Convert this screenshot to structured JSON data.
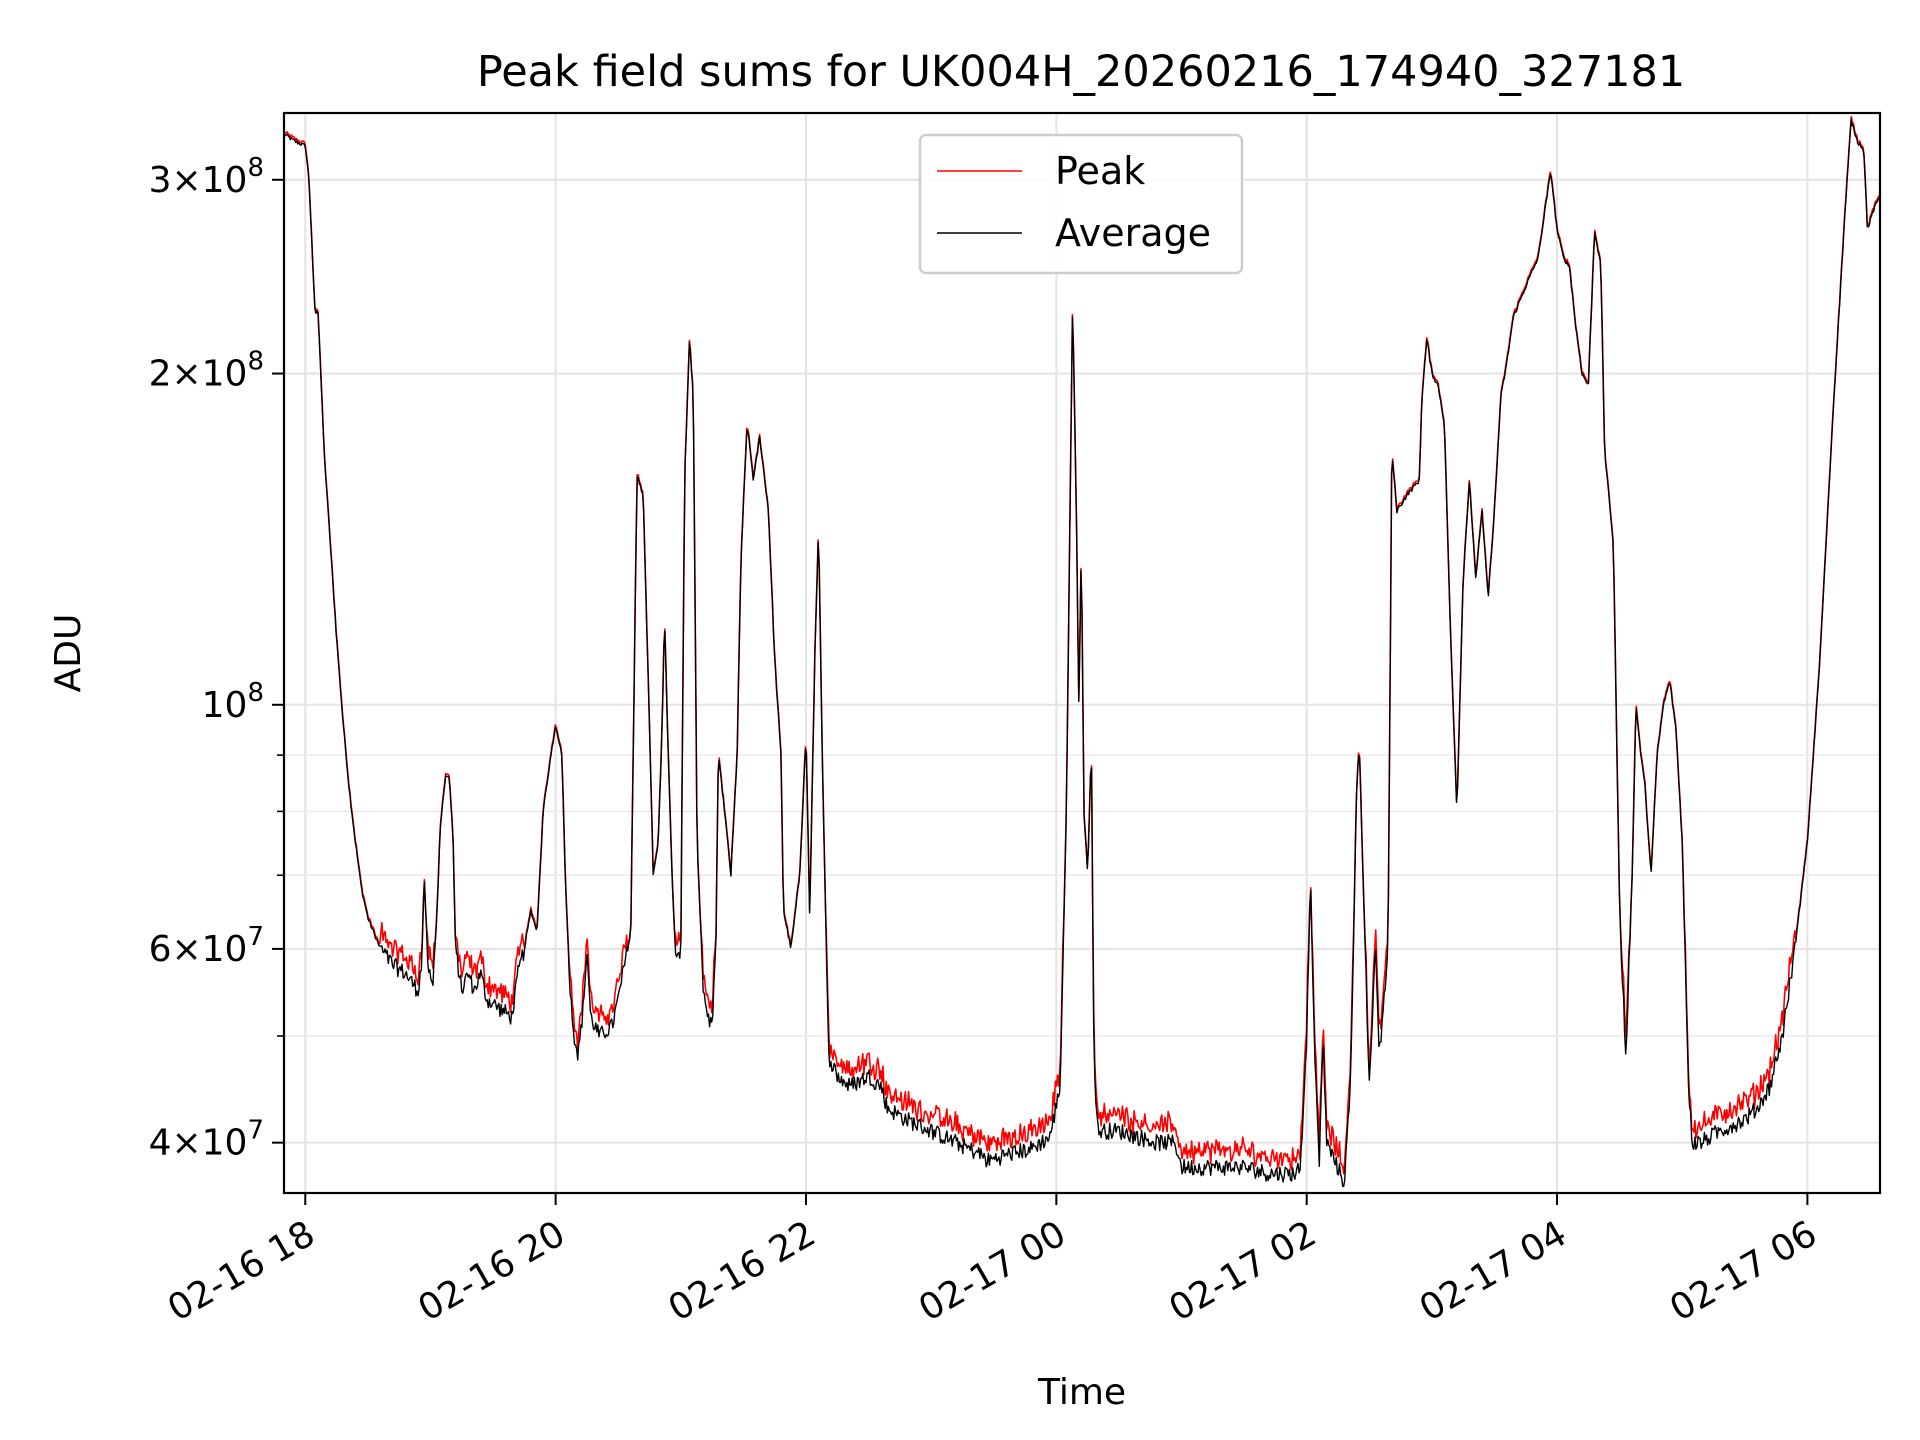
{
  "chart_data": {
    "type": "line",
    "title": "Peak field sums for UK004H_20260216_174940_327181",
    "xlabel": "Time",
    "ylabel": "ADU",
    "yscale": "log",
    "ylim": [
      36000000,
      345000000
    ],
    "xlim_hours": [
      17.83,
      30.58
    ],
    "x_unit": "hours since 2026-02-16 00:00",
    "grid": true,
    "legend_position": "top-center",
    "x_ticks": [
      {
        "value": 18,
        "label": "02-16 18"
      },
      {
        "value": 20,
        "label": "02-16 20"
      },
      {
        "value": 22,
        "label": "02-16 22"
      },
      {
        "value": 24,
        "label": "02-17 00"
      },
      {
        "value": 26,
        "label": "02-17 02"
      },
      {
        "value": 28,
        "label": "02-17 04"
      },
      {
        "value": 30,
        "label": "02-17 06"
      }
    ],
    "y_ticks": [
      {
        "value": 40000000,
        "mant": "4",
        "exp": "7"
      },
      {
        "value": 60000000,
        "mant": "6",
        "exp": "7"
      },
      {
        "value": 100000000,
        "mant": "",
        "exp": "8"
      },
      {
        "value": 200000000,
        "mant": "2",
        "exp": "8"
      },
      {
        "value": 300000000,
        "mant": "3",
        "exp": "8"
      }
    ],
    "y_minor_ticks": [
      50000000,
      70000000,
      80000000,
      90000000
    ],
    "series": [
      {
        "name": "Peak",
        "color": "#ff0000"
      },
      {
        "name": "Average",
        "color": "#000000"
      }
    ],
    "average_points": [
      [
        17.83,
        330
      ],
      [
        17.92,
        325
      ],
      [
        18.0,
        322
      ],
      [
        18.03,
        300
      ],
      [
        18.06,
        250
      ],
      [
        18.08,
        225
      ],
      [
        18.1,
        230
      ],
      [
        18.12,
        205
      ],
      [
        18.15,
        170
      ],
      [
        18.2,
        140
      ],
      [
        18.25,
        115
      ],
      [
        18.3,
        97
      ],
      [
        18.35,
        84
      ],
      [
        18.4,
        75
      ],
      [
        18.45,
        68
      ],
      [
        18.5,
        64
      ],
      [
        18.6,
        60
      ],
      [
        18.7,
        58
      ],
      [
        18.8,
        57
      ],
      [
        18.9,
        55
      ],
      [
        18.93,
        58
      ],
      [
        18.95,
        70
      ],
      [
        18.98,
        58
      ],
      [
        19.02,
        56
      ],
      [
        19.05,
        64
      ],
      [
        19.08,
        78
      ],
      [
        19.12,
        86
      ],
      [
        19.15,
        86
      ],
      [
        19.18,
        76
      ],
      [
        19.2,
        60
      ],
      [
        19.25,
        55
      ],
      [
        19.3,
        57
      ],
      [
        19.35,
        55
      ],
      [
        19.4,
        57
      ],
      [
        19.45,
        54
      ],
      [
        19.55,
        53
      ],
      [
        19.65,
        52
      ],
      [
        19.7,
        57
      ],
      [
        19.75,
        60
      ],
      [
        19.8,
        65
      ],
      [
        19.85,
        62
      ],
      [
        19.9,
        80
      ],
      [
        19.95,
        88
      ],
      [
        20.0,
        96
      ],
      [
        20.05,
        90
      ],
      [
        20.08,
        68
      ],
      [
        20.12,
        54
      ],
      [
        20.15,
        50
      ],
      [
        20.18,
        48
      ],
      [
        20.22,
        53
      ],
      [
        20.25,
        60
      ],
      [
        20.28,
        52
      ],
      [
        20.35,
        50
      ],
      [
        20.45,
        51
      ],
      [
        20.5,
        54
      ],
      [
        20.55,
        58
      ],
      [
        20.6,
        62
      ],
      [
        20.63,
        110
      ],
      [
        20.65,
        162
      ],
      [
        20.7,
        155
      ],
      [
        20.75,
        95
      ],
      [
        20.78,
        70
      ],
      [
        20.82,
        75
      ],
      [
        20.85,
        95
      ],
      [
        20.87,
        120
      ],
      [
        20.9,
        90
      ],
      [
        20.93,
        70
      ],
      [
        20.96,
        58
      ],
      [
        21.0,
        60
      ],
      [
        21.03,
        160
      ],
      [
        21.07,
        215
      ],
      [
        21.1,
        190
      ],
      [
        21.13,
        75
      ],
      [
        21.18,
        55
      ],
      [
        21.22,
        52
      ],
      [
        21.25,
        51
      ],
      [
        21.28,
        60
      ],
      [
        21.3,
        90
      ],
      [
        21.35,
        80
      ],
      [
        21.4,
        70
      ],
      [
        21.45,
        90
      ],
      [
        21.48,
        135
      ],
      [
        21.53,
        180
      ],
      [
        21.58,
        160
      ],
      [
        21.63,
        175
      ],
      [
        21.7,
        150
      ],
      [
        21.75,
        110
      ],
      [
        21.8,
        90
      ],
      [
        21.82,
        65
      ],
      [
        21.88,
        60
      ],
      [
        21.95,
        70
      ],
      [
        22.0,
        94
      ],
      [
        22.03,
        64
      ],
      [
        22.07,
        110
      ],
      [
        22.1,
        145
      ],
      [
        22.13,
        90
      ],
      [
        22.18,
        48
      ],
      [
        22.25,
        46
      ],
      [
        22.35,
        45
      ],
      [
        22.5,
        46
      ],
      [
        22.6,
        45
      ],
      [
        22.65,
        43
      ],
      [
        22.8,
        42
      ],
      [
        22.9,
        41.5
      ],
      [
        23.0,
        41
      ],
      [
        23.2,
        40
      ],
      [
        23.4,
        39
      ],
      [
        23.45,
        38.5
      ],
      [
        23.6,
        39
      ],
      [
        23.8,
        39.5
      ],
      [
        23.95,
        40.5
      ],
      [
        24.03,
        45
      ],
      [
        24.08,
        80
      ],
      [
        24.13,
        232
      ],
      [
        24.16,
        150
      ],
      [
        24.18,
        100
      ],
      [
        24.2,
        140
      ],
      [
        24.22,
        80
      ],
      [
        24.25,
        70
      ],
      [
        24.28,
        92
      ],
      [
        24.3,
        48
      ],
      [
        24.33,
        41
      ],
      [
        24.5,
        41
      ],
      [
        24.8,
        40
      ],
      [
        24.95,
        40
      ],
      [
        25.0,
        38
      ],
      [
        25.2,
        38
      ],
      [
        25.5,
        38
      ],
      [
        25.7,
        37.5
      ],
      [
        25.9,
        37.5
      ],
      [
        25.95,
        38
      ],
      [
        26.0,
        50
      ],
      [
        26.03,
        70
      ],
      [
        26.06,
        50
      ],
      [
        26.1,
        38
      ],
      [
        26.13,
        50
      ],
      [
        26.16,
        40
      ],
      [
        26.3,
        36.8
      ],
      [
        26.35,
        45
      ],
      [
        26.4,
        85
      ],
      [
        26.42,
        92
      ],
      [
        26.45,
        70
      ],
      [
        26.5,
        45
      ],
      [
        26.55,
        60
      ],
      [
        26.58,
        48
      ],
      [
        26.65,
        60
      ],
      [
        26.68,
        170
      ],
      [
        26.72,
        150
      ],
      [
        26.8,
        155
      ],
      [
        26.9,
        160
      ],
      [
        26.92,
        190
      ],
      [
        26.96,
        215
      ],
      [
        27.0,
        200
      ],
      [
        27.05,
        195
      ],
      [
        27.1,
        180
      ],
      [
        27.15,
        115
      ],
      [
        27.2,
        80
      ],
      [
        27.25,
        130
      ],
      [
        27.3,
        160
      ],
      [
        27.35,
        130
      ],
      [
        27.4,
        150
      ],
      [
        27.45,
        125
      ],
      [
        27.5,
        150
      ],
      [
        27.55,
        190
      ],
      [
        27.6,
        205
      ],
      [
        27.65,
        225
      ],
      [
        27.75,
        240
      ],
      [
        27.85,
        255
      ],
      [
        27.92,
        290
      ],
      [
        27.95,
        305
      ],
      [
        28.0,
        270
      ],
      [
        28.05,
        255
      ],
      [
        28.1,
        250
      ],
      [
        28.15,
        220
      ],
      [
        28.2,
        200
      ],
      [
        28.25,
        195
      ],
      [
        28.3,
        270
      ],
      [
        28.35,
        250
      ],
      [
        28.38,
        170
      ],
      [
        28.45,
        140
      ],
      [
        28.5,
        65
      ],
      [
        28.55,
        48
      ],
      [
        28.6,
        70
      ],
      [
        28.63,
        100
      ],
      [
        28.67,
        90
      ],
      [
        28.7,
        85
      ],
      [
        28.75,
        70
      ],
      [
        28.8,
        90
      ],
      [
        28.85,
        100
      ],
      [
        28.9,
        105
      ],
      [
        28.95,
        95
      ],
      [
        29.0,
        75
      ],
      [
        29.05,
        45
      ],
      [
        29.08,
        40
      ],
      [
        29.15,
        40
      ],
      [
        29.3,
        41
      ],
      [
        29.5,
        42
      ],
      [
        29.6,
        43
      ],
      [
        29.7,
        45
      ],
      [
        29.8,
        50
      ],
      [
        29.9,
        60
      ],
      [
        30.0,
        75
      ],
      [
        30.1,
        110
      ],
      [
        30.2,
        180
      ],
      [
        30.3,
        280
      ],
      [
        30.35,
        340
      ],
      [
        30.4,
        325
      ],
      [
        30.45,
        320
      ],
      [
        30.48,
        270
      ],
      [
        30.52,
        280
      ],
      [
        30.58,
        290
      ]
    ]
  }
}
